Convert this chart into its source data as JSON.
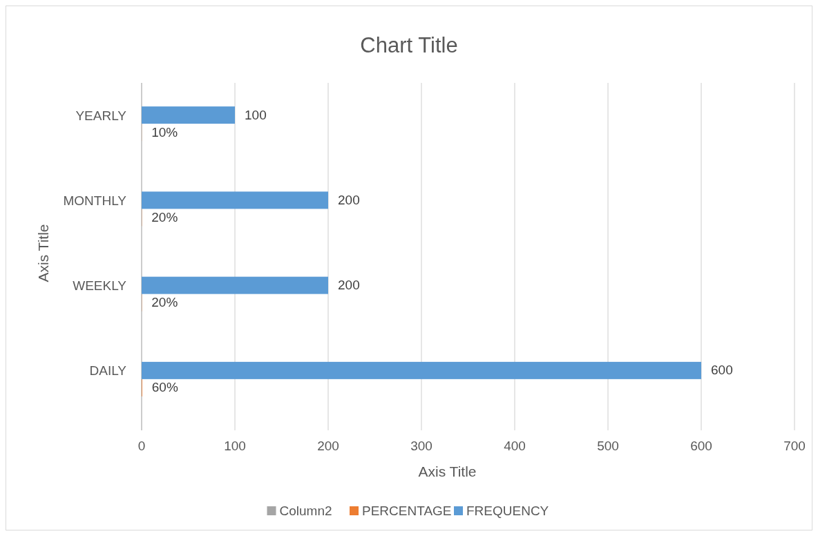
{
  "chart_data": {
    "type": "bar",
    "orientation": "horizontal",
    "title": "Chart Title",
    "xlabel": "Axis Title",
    "ylabel": "Axis Title",
    "categories": [
      "YEARLY",
      "MONTHLY",
      "WEEKLY",
      "DAILY"
    ],
    "series": [
      {
        "name": "Column2",
        "color": "#a5a5a5",
        "values": [
          null,
          null,
          null,
          null
        ]
      },
      {
        "name": "PERCENTAGE",
        "color": "#ed7d31",
        "values": [
          0.1,
          0.2,
          0.2,
          0.6
        ],
        "value_labels": [
          "10%",
          "20%",
          "20%",
          "60%"
        ]
      },
      {
        "name": "FREQUENCY",
        "color": "#5b9bd5",
        "values": [
          100,
          200,
          200,
          600
        ],
        "value_labels": [
          "100",
          "200",
          "200",
          "600"
        ]
      }
    ],
    "xlim": [
      0,
      700
    ],
    "xticks": [
      0,
      100,
      200,
      300,
      400,
      500,
      600,
      700
    ],
    "grid": "x",
    "legend": "bottom"
  }
}
